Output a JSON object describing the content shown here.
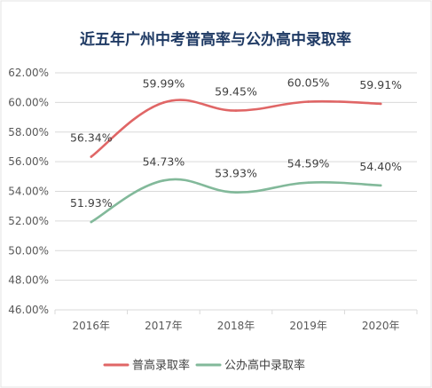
{
  "chart_data": {
    "type": "line",
    "title": "近五年广州中考普高率与公办高中录取率",
    "categories": [
      "2016年",
      "2017年",
      "2018年",
      "2019年",
      "2020年"
    ],
    "y_ticks": [
      "46.00%",
      "48.00%",
      "50.00%",
      "52.00%",
      "54.00%",
      "56.00%",
      "58.00%",
      "60.00%",
      "62.00%"
    ],
    "ylim": [
      46,
      62
    ],
    "grid": true,
    "legend_position": "bottom",
    "series": [
      {
        "name": "普高录取率",
        "color": "#e06666",
        "values": [
          56.34,
          59.99,
          59.45,
          60.05,
          59.91
        ],
        "labels": [
          "56.34%",
          "59.99%",
          "59.45%",
          "60.05%",
          "59.91%"
        ]
      },
      {
        "name": "公办高中录取率",
        "color": "#82b99a",
        "values": [
          51.93,
          54.73,
          53.93,
          54.59,
          54.4
        ],
        "labels": [
          "51.93%",
          "54.73%",
          "53.93%",
          "54.59%",
          "54.40%"
        ]
      }
    ]
  }
}
